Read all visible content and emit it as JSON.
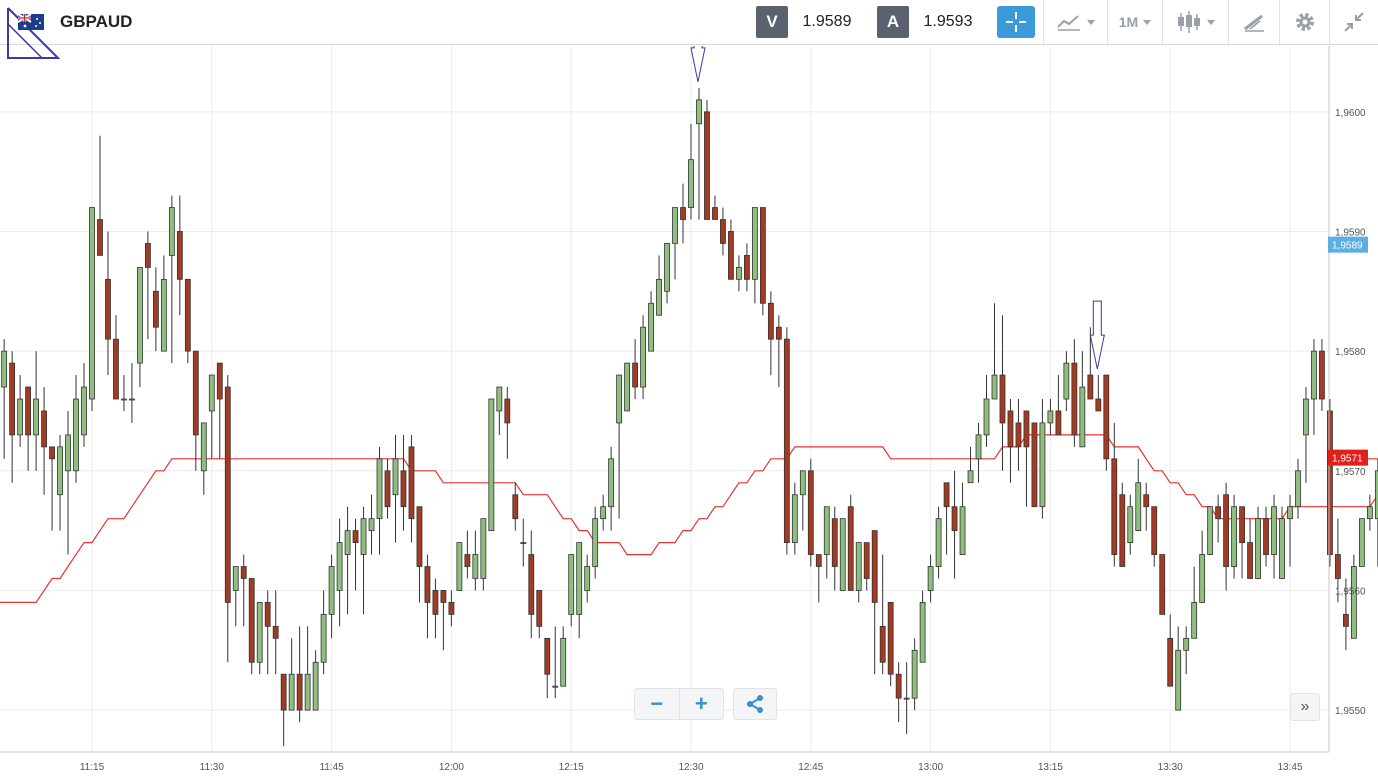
{
  "instrument": {
    "symbol": "GBPAUD",
    "flag_icon": "uk-australia-flag-icon"
  },
  "quotes": {
    "sell_label": "V",
    "sell_value": "1.9589",
    "buy_label": "A",
    "buy_value": "1.9593"
  },
  "toolbar": {
    "crosshair_icon": "crosshair-icon",
    "indicators_icon": "indicators-icon",
    "timeframe_label": "1M",
    "candles_icon": "candlestick-icon",
    "draw_icon": "draw-tools-icon",
    "settings_icon": "gear-icon",
    "fullscreen_icon": "collapse-icon"
  },
  "controls": {
    "zoom_out": "−",
    "zoom_in": "+",
    "share_icon": "share-icon",
    "scroll_end": "»"
  },
  "colors": {
    "bull": "#8fbf7f",
    "bear": "#a33a22",
    "ma": "#e8322e",
    "grid": "#ececec",
    "bid_badge": "#5bb0e0",
    "ma_badge": "#e0201a",
    "accent": "#3b9ad9"
  },
  "chart_data": {
    "type": "candlestick",
    "interval_minutes": 1,
    "title": "",
    "xlabel": "",
    "ylabel": "",
    "ylim": [
      1.95465,
      1.96055
    ],
    "y_ticks": [
      "1,9550",
      "1,9560",
      "1,9570",
      "1,9580",
      "1,9590",
      "1,9600"
    ],
    "y_tick_values": [
      1.955,
      1.956,
      1.957,
      1.958,
      1.959,
      1.96
    ],
    "x_ticks": [
      "11:15",
      "11:30",
      "11:45",
      "12:00",
      "12:15",
      "12:30",
      "12:45",
      "13:00",
      "13:15",
      "13:30",
      "13:45"
    ],
    "x_tick_minutes": [
      15,
      30,
      45,
      60,
      75,
      90,
      105,
      120,
      135,
      150,
      165
    ],
    "first_candle_minute": 4,
    "badges": {
      "bid": "1,9589",
      "ma": "1,9571"
    },
    "candles": [
      [
        1.9577,
        1.958,
        1.9581,
        1.9571
      ],
      [
        1.9579,
        1.9573,
        1.958,
        1.9569
      ],
      [
        1.9573,
        1.9576,
        1.9578,
        1.9572
      ],
      [
        1.9577,
        1.9573,
        1.9577,
        1.957
      ],
      [
        1.9573,
        1.9576,
        1.958,
        1.957
      ],
      [
        1.9575,
        1.9572,
        1.9577,
        1.9568
      ],
      [
        1.9572,
        1.9571,
        1.9572,
        1.9565
      ],
      [
        1.9568,
        1.9572,
        1.9573,
        1.9565
      ],
      [
        1.957,
        1.9573,
        1.9575,
        1.9563
      ],
      [
        1.957,
        1.9576,
        1.9578,
        1.9569
      ],
      [
        1.9573,
        1.9577,
        1.9579,
        1.9572
      ],
      [
        1.9576,
        1.9592,
        1.9592,
        1.9575
      ],
      [
        1.9591,
        1.9588,
        1.9598,
        1.9588
      ],
      [
        1.9586,
        1.9581,
        1.959,
        1.9578
      ],
      [
        1.9581,
        1.9576,
        1.9583,
        1.9576
      ],
      [
        1.9576,
        1.9576,
        1.9578,
        1.9575
      ],
      [
        1.9576,
        1.9576,
        1.9579,
        1.9574
      ],
      [
        1.9579,
        1.9587,
        1.9587,
        1.9577
      ],
      [
        1.9589,
        1.9587,
        1.959,
        1.9581
      ],
      [
        1.9585,
        1.9582,
        1.9587,
        1.958
      ],
      [
        1.958,
        1.9586,
        1.9588,
        1.9582
      ],
      [
        1.9588,
        1.9592,
        1.9593,
        1.9579
      ],
      [
        1.959,
        1.9586,
        1.9593,
        1.9583
      ],
      [
        1.9586,
        1.958,
        1.9586,
        1.9579
      ],
      [
        1.958,
        1.9573,
        1.958,
        1.957
      ],
      [
        1.957,
        1.9574,
        1.9574,
        1.9568
      ],
      [
        1.9575,
        1.9578,
        1.9578,
        1.9571
      ],
      [
        1.9579,
        1.9576,
        1.9579,
        1.9571
      ],
      [
        1.9577,
        1.9559,
        1.9578,
        1.9554
      ],
      [
        1.956,
        1.9562,
        1.9562,
        1.9557
      ],
      [
        1.9562,
        1.9561,
        1.9563,
        1.9557
      ],
      [
        1.9561,
        1.9554,
        1.9561,
        1.9553
      ],
      [
        1.9554,
        1.9559,
        1.9559,
        1.9553
      ],
      [
        1.9559,
        1.9557,
        1.956,
        1.9553
      ],
      [
        1.9557,
        1.9556,
        1.956,
        1.9553
      ],
      [
        1.9553,
        1.955,
        1.9553,
        1.9547
      ],
      [
        1.955,
        1.9553,
        1.9556,
        1.955
      ],
      [
        1.9553,
        1.955,
        1.9557,
        1.9549
      ],
      [
        1.955,
        1.9553,
        1.9557,
        1.955
      ],
      [
        1.955,
        1.9554,
        1.9555,
        1.955
      ],
      [
        1.9554,
        1.9558,
        1.956,
        1.9553
      ],
      [
        1.9558,
        1.9562,
        1.9563,
        1.9556
      ],
      [
        1.956,
        1.9564,
        1.9566,
        1.9557
      ],
      [
        1.9563,
        1.9565,
        1.9567,
        1.9558
      ],
      [
        1.9565,
        1.9564,
        1.9566,
        1.956
      ],
      [
        1.9563,
        1.9566,
        1.9567,
        1.9558
      ],
      [
        1.9565,
        1.9566,
        1.9568,
        1.9563
      ],
      [
        1.9566,
        1.9571,
        1.9572,
        1.9563
      ],
      [
        1.957,
        1.9567,
        1.9571,
        1.9566
      ],
      [
        1.9568,
        1.9571,
        1.9573,
        1.9564
      ],
      [
        1.957,
        1.9567,
        1.9573,
        1.9565
      ],
      [
        1.9572,
        1.9566,
        1.9573,
        1.9564
      ],
      [
        1.9567,
        1.9562,
        1.9567,
        1.9559
      ],
      [
        1.9562,
        1.9559,
        1.9563,
        1.9556
      ],
      [
        1.956,
        1.9558,
        1.9561,
        1.9556
      ],
      [
        1.956,
        1.9559,
        1.956,
        1.9555
      ],
      [
        1.9559,
        1.9558,
        1.956,
        1.9557
      ],
      [
        1.956,
        1.9564,
        1.9564,
        1.956
      ],
      [
        1.9563,
        1.9562,
        1.9565,
        1.9561
      ],
      [
        1.9561,
        1.9563,
        1.9565,
        1.956
      ],
      [
        1.9561,
        1.9566,
        1.9566,
        1.956
      ],
      [
        1.9565,
        1.9576,
        1.9576,
        1.9565
      ],
      [
        1.9575,
        1.9577,
        1.9577,
        1.9573
      ],
      [
        1.9576,
        1.9574,
        1.9577,
        1.9571
      ],
      [
        1.9568,
        1.9566,
        1.9569,
        1.9565
      ],
      [
        1.9564,
        1.9564,
        1.9566,
        1.9562
      ],
      [
        1.9563,
        1.9558,
        1.9565,
        1.9556
      ],
      [
        1.956,
        1.9557,
        1.9559,
        1.9556
      ],
      [
        1.9556,
        1.9553,
        1.9556,
        1.9551
      ],
      [
        1.9552,
        1.9552,
        1.9557,
        1.9551
      ],
      [
        1.9552,
        1.9556,
        1.9557,
        1.9552
      ],
      [
        1.9558,
        1.9563,
        1.9563,
        1.9557
      ],
      [
        1.9558,
        1.9564,
        1.9564,
        1.9556
      ],
      [
        1.956,
        1.9562,
        1.9563,
        1.9559
      ],
      [
        1.9562,
        1.9566,
        1.9567,
        1.9561
      ],
      [
        1.9566,
        1.9567,
        1.9568,
        1.9565
      ],
      [
        1.9567,
        1.9571,
        1.9572,
        1.9565
      ],
      [
        1.9574,
        1.9578,
        1.9578,
        1.9566
      ],
      [
        1.9575,
        1.9579,
        1.9579,
        1.9577
      ],
      [
        1.9579,
        1.9577,
        1.9581,
        1.9576
      ],
      [
        1.9577,
        1.9582,
        1.9583,
        1.9576
      ],
      [
        1.958,
        1.9584,
        1.9585,
        1.958
      ],
      [
        1.9583,
        1.9586,
        1.9588,
        1.9583
      ],
      [
        1.9585,
        1.9589,
        1.9589,
        1.9584
      ],
      [
        1.9589,
        1.9592,
        1.9592,
        1.9586
      ],
      [
        1.9592,
        1.9591,
        1.9594,
        1.9589
      ],
      [
        1.9592,
        1.9596,
        1.9599,
        1.9591
      ],
      [
        1.9599,
        1.9601,
        1.9602,
        1.9591
      ],
      [
        1.96,
        1.9591,
        1.9601,
        1.9591
      ],
      [
        1.9592,
        1.9591,
        1.9593,
        1.9591
      ],
      [
        1.9591,
        1.9589,
        1.9592,
        1.9588
      ],
      [
        1.959,
        1.9586,
        1.9591,
        1.9586
      ],
      [
        1.9586,
        1.9587,
        1.9588,
        1.9585
      ],
      [
        1.9588,
        1.9586,
        1.9589,
        1.9585
      ],
      [
        1.9586,
        1.9592,
        1.9592,
        1.9584
      ],
      [
        1.9592,
        1.9584,
        1.9592,
        1.9583
      ],
      [
        1.9584,
        1.9581,
        1.9585,
        1.9578
      ],
      [
        1.9582,
        1.9581,
        1.9583,
        1.9577
      ],
      [
        1.9581,
        1.9564,
        1.9582,
        1.9563
      ],
      [
        1.9564,
        1.9568,
        1.9569,
        1.9563
      ],
      [
        1.9568,
        1.957,
        1.957,
        1.9565
      ],
      [
        1.957,
        1.9563,
        1.9571,
        1.9562
      ],
      [
        1.9563,
        1.9562,
        1.9563,
        1.9559
      ],
      [
        1.9563,
        1.9567,
        1.9567,
        1.9561
      ],
      [
        1.9566,
        1.9562,
        1.9567,
        1.956
      ],
      [
        1.956,
        1.9566,
        1.9566,
        1.956
      ],
      [
        1.9567,
        1.956,
        1.9568,
        1.956
      ],
      [
        1.956,
        1.9564,
        1.9564,
        1.9559
      ],
      [
        1.9564,
        1.9561,
        1.9564,
        1.956
      ],
      [
        1.9565,
        1.9559,
        1.9564,
        1.9553
      ],
      [
        1.9557,
        1.9554,
        1.9563,
        1.9553
      ],
      [
        1.9559,
        1.9553,
        1.9559,
        1.9552
      ],
      [
        1.9553,
        1.9551,
        1.9554,
        1.9549
      ],
      [
        1.9551,
        1.9551,
        1.9554,
        1.9548
      ],
      [
        1.9551,
        1.9555,
        1.9556,
        1.955
      ],
      [
        1.9554,
        1.9559,
        1.956,
        1.9555
      ],
      [
        1.956,
        1.9562,
        1.9563,
        1.9559
      ],
      [
        1.9562,
        1.9566,
        1.9567,
        1.9561
      ],
      [
        1.9569,
        1.9567,
        1.9569,
        1.9563
      ],
      [
        1.9567,
        1.9565,
        1.957,
        1.9561
      ],
      [
        1.9563,
        1.9567,
        1.9569,
        1.9563
      ],
      [
        1.9569,
        1.957,
        1.9572,
        1.9569
      ],
      [
        1.9571,
        1.9573,
        1.9574,
        1.9569
      ],
      [
        1.9573,
        1.9576,
        1.9578,
        1.9572
      ],
      [
        1.9576,
        1.9578,
        1.9584,
        1.9576
      ],
      [
        1.9578,
        1.9574,
        1.9583,
        1.957
      ],
      [
        1.9575,
        1.9572,
        1.9576,
        1.9569
      ],
      [
        1.9574,
        1.9572,
        1.9576,
        1.957
      ],
      [
        1.9575,
        1.9572,
        1.9575,
        1.9567
      ],
      [
        1.9574,
        1.9567,
        1.9574,
        1.9567
      ],
      [
        1.9567,
        1.9574,
        1.9576,
        1.9566
      ],
      [
        1.9574,
        1.9575,
        1.9576,
        1.9573
      ],
      [
        1.9575,
        1.9573,
        1.9578,
        1.9573
      ],
      [
        1.9576,
        1.9579,
        1.958,
        1.9575
      ],
      [
        1.9579,
        1.9573,
        1.9581,
        1.9572
      ],
      [
        1.9572,
        1.9577,
        1.958,
        1.9573
      ],
      [
        1.9578,
        1.9576,
        1.9582,
        1.9576
      ],
      [
        1.9576,
        1.9575,
        1.9578,
        1.9575
      ],
      [
        1.9578,
        1.9571,
        1.9578,
        1.957
      ],
      [
        1.9571,
        1.9563,
        1.9574,
        1.9562
      ],
      [
        1.9568,
        1.9562,
        1.9569,
        1.9562
      ],
      [
        1.9564,
        1.9567,
        1.9568,
        1.9563
      ],
      [
        1.9565,
        1.9569,
        1.9571,
        1.9565
      ],
      [
        1.9568,
        1.9567,
        1.9569,
        1.9565
      ],
      [
        1.9567,
        1.9563,
        1.9567,
        1.9562
      ],
      [
        1.9563,
        1.9558,
        1.9563,
        1.9558
      ],
      [
        1.9556,
        1.9552,
        1.9558,
        1.9552
      ],
      [
        1.955,
        1.9555,
        1.9557,
        1.9553
      ],
      [
        1.9555,
        1.9556,
        1.9557,
        1.9553
      ],
      [
        1.9556,
        1.9559,
        1.9562,
        1.9556
      ],
      [
        1.9559,
        1.9563,
        1.9565,
        1.9559
      ],
      [
        1.9563,
        1.9567,
        1.9567,
        1.9563
      ],
      [
        1.9567,
        1.9566,
        1.9568,
        1.9564
      ],
      [
        1.9568,
        1.9562,
        1.9569,
        1.956
      ],
      [
        1.9562,
        1.9567,
        1.9568,
        1.9561
      ],
      [
        1.9567,
        1.9564,
        1.9567,
        1.9561
      ],
      [
        1.9564,
        1.9561,
        1.9566,
        1.9561
      ],
      [
        1.9561,
        1.9566,
        1.9567,
        1.9561
      ],
      [
        1.9566,
        1.9563,
        1.9567,
        1.9562
      ],
      [
        1.9563,
        1.9567,
        1.9568,
        1.9561
      ],
      [
        1.9561,
        1.9566,
        1.9567,
        1.9563
      ],
      [
        1.9566,
        1.9567,
        1.9568,
        1.9562
      ],
      [
        1.9567,
        1.957,
        1.9571,
        1.9566
      ],
      [
        1.9573,
        1.9576,
        1.9577,
        1.9569
      ],
      [
        1.9576,
        1.958,
        1.9581,
        1.9573
      ],
      [
        1.958,
        1.9576,
        1.9581,
        1.9575
      ],
      [
        1.9575,
        1.9563,
        1.9576,
        1.9562
      ],
      [
        1.9563,
        1.9561,
        1.9566,
        1.9559
      ],
      [
        1.9558,
        1.9557,
        1.9561,
        1.9555
      ],
      [
        1.9556,
        1.9562,
        1.9563,
        1.9556
      ],
      [
        1.9562,
        1.9566,
        1.9566,
        1.9562
      ],
      [
        1.9566,
        1.9567,
        1.9568,
        1.9565
      ],
      [
        1.9566,
        1.957,
        1.9571,
        1.9562
      ],
      [
        1.957,
        1.9575,
        1.9577,
        1.9569
      ],
      [
        1.9574,
        1.9577,
        1.9578,
        1.9573
      ],
      [
        1.9577,
        1.9583,
        1.9585,
        1.9577
      ],
      [
        1.9583,
        1.9584,
        1.9584,
        1.9579
      ],
      [
        1.9582,
        1.9584,
        1.9585,
        1.9582
      ],
      [
        1.9584,
        1.958,
        1.9589,
        1.9582
      ],
      [
        1.958,
        1.9588,
        1.9588,
        1.9579
      ],
      [
        1.9591,
        1.9583,
        1.9591,
        1.958
      ],
      [
        1.9583,
        1.9585,
        1.9586,
        1.958
      ],
      [
        1.9585,
        1.9581,
        1.9588,
        1.958
      ],
      [
        1.9582,
        1.9581,
        1.9584,
        1.9578
      ],
      [
        1.958,
        1.9576,
        1.958,
        1.9574
      ],
      [
        1.9576,
        1.9579,
        1.9583,
        1.9576
      ],
      [
        1.958,
        1.9582,
        1.9583,
        1.9579
      ],
      [
        1.9581,
        1.9587,
        1.9587,
        1.958
      ]
    ],
    "moving_average": {
      "name": "",
      "values": [
        1.9559,
        1.9559,
        1.9559,
        1.9559,
        1.9559,
        1.956,
        1.9561,
        1.9561,
        1.9562,
        1.9563,
        1.9564,
        1.9564,
        1.9565,
        1.9566,
        1.9566,
        1.9566,
        1.9567,
        1.9568,
        1.9569,
        1.957,
        1.957,
        1.9571,
        1.9571,
        1.9571,
        1.9571,
        1.9571,
        1.9571,
        1.9571,
        1.9571,
        1.9571,
        1.9571,
        1.9571,
        1.9571,
        1.9571,
        1.9571,
        1.9571,
        1.9571,
        1.9571,
        1.9571,
        1.9571,
        1.9571,
        1.9571,
        1.9571,
        1.9571,
        1.9571,
        1.9571,
        1.9571,
        1.9571,
        1.9571,
        1.9571,
        1.9571,
        1.957,
        1.957,
        1.957,
        1.957,
        1.9569,
        1.9569,
        1.9569,
        1.9569,
        1.9569,
        1.9569,
        1.9569,
        1.9569,
        1.9569,
        1.9569,
        1.9568,
        1.9568,
        1.9568,
        1.9568,
        1.9567,
        1.9566,
        1.9566,
        1.9565,
        1.9565,
        1.9564,
        1.9564,
        1.9564,
        1.9564,
        1.9563,
        1.9563,
        1.9563,
        1.9563,
        1.9564,
        1.9564,
        1.9564,
        1.9565,
        1.9565,
        1.9566,
        1.9566,
        1.9567,
        1.9567,
        1.9568,
        1.9569,
        1.9569,
        1.957,
        1.957,
        1.9571,
        1.9571,
        1.9571,
        1.9572,
        1.9572,
        1.9572,
        1.9572,
        1.9572,
        1.9572,
        1.9572,
        1.9572,
        1.9572,
        1.9572,
        1.9572,
        1.9572,
        1.9571,
        1.9571,
        1.9571,
        1.9571,
        1.9571,
        1.9571,
        1.9571,
        1.9571,
        1.9571,
        1.9571,
        1.9571,
        1.9571,
        1.9571,
        1.9571,
        1.9572,
        1.9572,
        1.9572,
        1.9573,
        1.9573,
        1.9573,
        1.9573,
        1.9573,
        1.9573,
        1.9573,
        1.9573,
        1.9573,
        1.9573,
        1.9573,
        1.9572,
        1.9572,
        1.9572,
        1.9572,
        1.9571,
        1.957,
        1.957,
        1.9569,
        1.9569,
        1.9568,
        1.9568,
        1.9567,
        1.9567,
        1.9566,
        1.9566,
        1.9566,
        1.9566,
        1.9566,
        1.9566,
        1.9566,
        1.9566,
        1.9566,
        1.9567,
        1.9567,
        1.9567,
        1.9567,
        1.9567,
        1.9567,
        1.9567,
        1.9567,
        1.9567,
        1.9567,
        1.9567,
        1.9568,
        1.9568,
        1.9569,
        1.9569,
        1.9569,
        1.957,
        1.957,
        1.957,
        1.957,
        1.9571,
        1.9571,
        1.9571,
        1.9571,
        1.9571,
        1.9571,
        1.9571,
        1.9571
      ]
    },
    "annotations": [
      {
        "type": "down-arrow",
        "candle_index": 87
      },
      {
        "type": "down-arrow",
        "candle_index": 137
      }
    ]
  }
}
